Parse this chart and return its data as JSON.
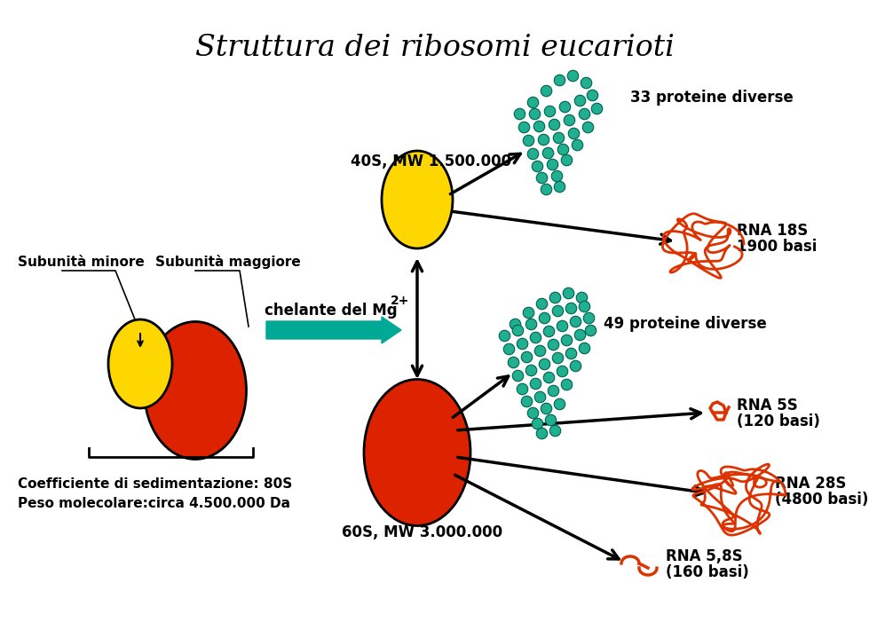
{
  "title": "Struttura dei ribosomi eucarioti",
  "title_fontsize": 24,
  "bg_color": "#ffffff",
  "yellow_color": "#FFD700",
  "red_color": "#DD2200",
  "teal_color": "#00A896",
  "dot_color": "#20B090",
  "dot_edge_color": "#006050",
  "orange_rna_color": "#DD3300",
  "text_color": "#000000",
  "labels": {
    "subunit_minore": "Subunità minore",
    "subunit_maggiore": "Subunità maggiore",
    "chelante": "chelante del Mg",
    "chelante_super": "2+",
    "label_40S": "40S, MW 1.500.000",
    "label_60S": "60S, MW 3.000.000",
    "label_33": "33 proteine diverse",
    "label_rna18S_1": "RNA 18S",
    "label_rna18S_2": "1900 basi",
    "label_49": "49 proteine diverse",
    "label_rna5S_1": "RNA 5S",
    "label_rna5S_2": "(120 basi)",
    "label_rna28S_1": "RNA 28S",
    "label_rna28S_2": "(4800 basi)",
    "label_rna58S_1": "RNA 5,8S",
    "label_rna58S_2": "(160 basi)",
    "label_coeff": "Coefficiente di sedimentazione: 80S",
    "label_peso": "Peso molecolare:circa 4.500.000 Da"
  }
}
